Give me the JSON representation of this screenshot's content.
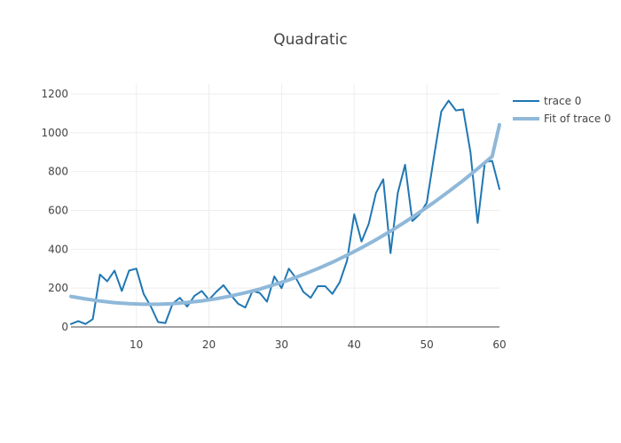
{
  "chart_data": {
    "type": "line",
    "title": "Quadratic",
    "xlabel": "",
    "ylabel": "",
    "xlim": [
      1,
      60
    ],
    "ylim": [
      0,
      1250
    ],
    "x_ticks": [
      10,
      20,
      30,
      40,
      50,
      60
    ],
    "y_ticks": [
      0,
      200,
      400,
      600,
      800,
      1000,
      1200
    ],
    "grid": true,
    "legend_position": "top-right",
    "series": [
      {
        "name": "trace 0",
        "color": "#1f77b4",
        "x": [
          1,
          2,
          3,
          4,
          5,
          6,
          7,
          8,
          9,
          10,
          11,
          12,
          13,
          14,
          15,
          16,
          17,
          18,
          19,
          20,
          21,
          22,
          23,
          24,
          25,
          26,
          27,
          28,
          29,
          30,
          31,
          32,
          33,
          34,
          35,
          36,
          37,
          38,
          39,
          40,
          41,
          42,
          43,
          44,
          45,
          46,
          47,
          48,
          49,
          50,
          51,
          52,
          53,
          54,
          55,
          56,
          57,
          58,
          59,
          60
        ],
        "values": [
          15,
          30,
          15,
          40,
          270,
          235,
          290,
          185,
          290,
          300,
          170,
          105,
          25,
          20,
          120,
          150,
          105,
          160,
          185,
          140,
          180,
          215,
          165,
          120,
          100,
          185,
          175,
          130,
          260,
          200,
          300,
          250,
          180,
          150,
          210,
          210,
          170,
          230,
          340,
          580,
          440,
          530,
          690,
          760,
          380,
          690,
          835,
          545,
          580,
          640,
          880,
          1110,
          1165,
          1115,
          1120,
          900,
          535,
          850,
          855,
          710
        ]
      },
      {
        "name": "Fit of trace 0",
        "color": "#8fb8d9",
        "x": [
          1,
          3,
          5,
          7,
          9,
          11,
          13,
          15,
          17,
          19,
          21,
          23,
          25,
          27,
          29,
          31,
          33,
          35,
          37,
          39,
          41,
          43,
          45,
          47,
          49,
          51,
          53,
          55,
          57,
          59,
          60
        ],
        "values": [
          157,
          144,
          133,
          125,
          120,
          117,
          117,
          120,
          126,
          134,
          145,
          159,
          176,
          195,
          218,
          242,
          270,
          300,
          333,
          369,
          408,
          449,
          493,
          540,
          590,
          642,
          697,
          754,
          815,
          878,
          1041
        ]
      }
    ]
  }
}
